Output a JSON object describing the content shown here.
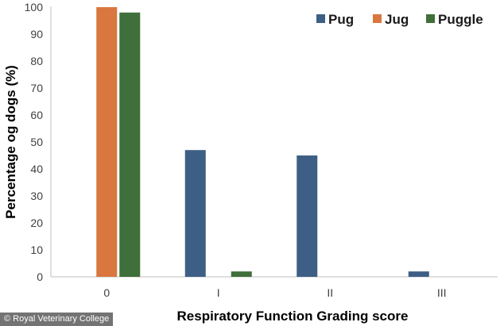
{
  "chart_data": {
    "type": "bar",
    "categories": [
      "0",
      "I",
      "II",
      "III"
    ],
    "series": [
      {
        "name": "Pug",
        "values": [
          0,
          47,
          45,
          2
        ]
      },
      {
        "name": "Jug",
        "values": [
          100,
          0,
          0,
          0
        ]
      },
      {
        "name": "Puggle",
        "values": [
          98,
          2,
          0,
          0
        ]
      }
    ],
    "colors": {
      "Pug": "#3e5f85",
      "Jug": "#d9773e",
      "Puggle": "#3f6f3a"
    },
    "xlabel": "Respiratory Function Grading score",
    "ylabel": "Percentage og dogs (%)",
    "ylim": [
      0,
      100
    ],
    "yticks": [
      0,
      10,
      20,
      30,
      40,
      50,
      60,
      70,
      80,
      90,
      100
    ],
    "grid": false,
    "legend_position": "top-right"
  },
  "credit": "© Royal Veterinary College"
}
